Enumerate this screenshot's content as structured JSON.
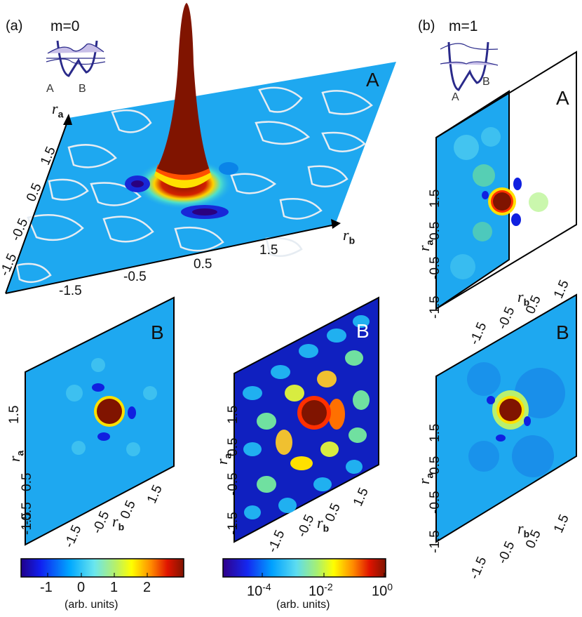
{
  "panel_labels": {
    "a": "(a)",
    "b": "(b)"
  },
  "insets": {
    "a": {
      "m_label": "m=0",
      "well_a": "A",
      "well_b": "B"
    },
    "b": {
      "m_label": "m=1",
      "well_a": "A",
      "well_b": "B"
    }
  },
  "subplot_letters": {
    "main": "A",
    "b_A": "A",
    "b_B": "B",
    "lin_B": "B",
    "log_B": "B"
  },
  "axis": {
    "ra": "r",
    "ra_sub": "a",
    "rb": "r",
    "rb_sub": "b"
  },
  "main_ticks": {
    "ra": [
      "1.5",
      "0.5",
      "-0.5",
      "-1.5"
    ],
    "rb": [
      "-1.5",
      "-0.5",
      "0.5",
      "1.5"
    ]
  },
  "small_ticks": {
    "ra": [
      "1.5",
      "0.5",
      "-0.5",
      "-1.5"
    ],
    "rb": [
      "-1.5",
      "-0.5",
      "0.5",
      "1.5"
    ]
  },
  "colorbars": {
    "linear": {
      "ticks": [
        "-1",
        "0",
        "1",
        "2"
      ],
      "unit": "(arb. units)",
      "min": -2,
      "max": 3
    },
    "log": {
      "ticks": [
        {
          "base": "10",
          "exp": "-4"
        },
        {
          "base": "10",
          "exp": "-2"
        },
        {
          "base": "10",
          "exp": "0"
        }
      ],
      "unit": "(arb. units)"
    }
  },
  "colors": {
    "background_field": "#1ea8f0",
    "peak": "#801400",
    "contour": "#e6ecf2"
  },
  "chart_data": [
    {
      "type": "heatmap",
      "panel": "(a) A",
      "view": "3d-surface",
      "m": 0,
      "xlabel": "r_b",
      "ylabel": "r_a",
      "x_ticks": [
        -1.5,
        -0.5,
        0.5,
        1.5
      ],
      "y_ticks": [
        -1.5,
        -0.5,
        0.5,
        1.5
      ],
      "colorbar": "linear"
    },
    {
      "type": "heatmap",
      "panel": "(a) B linear",
      "m": 0,
      "xlabel": "r_b",
      "ylabel": "r_a",
      "x_ticks": [
        -1.5,
        -0.5,
        0.5,
        1.5
      ],
      "y_ticks": [
        -1.5,
        -0.5,
        0.5,
        1.5
      ],
      "colorbar": "linear"
    },
    {
      "type": "heatmap",
      "panel": "(a) B log",
      "m": 0,
      "xlabel": "r_b",
      "ylabel": "r_a",
      "x_ticks": [
        -1.5,
        -0.5,
        0.5,
        1.5
      ],
      "y_ticks": [
        -1.5,
        -0.5,
        0.5,
        1.5
      ],
      "colorbar": "log"
    },
    {
      "type": "heatmap",
      "panel": "(b) A",
      "m": 1,
      "xlabel": "r_b",
      "ylabel": "r_a",
      "x_ticks": [
        -1.5,
        -0.5,
        0.5,
        1.5
      ],
      "y_ticks": [
        -1.5,
        -0.5,
        0.5,
        1.5
      ],
      "colorbar": "linear"
    },
    {
      "type": "heatmap",
      "panel": "(b) B",
      "m": 1,
      "xlabel": "r_b",
      "ylabel": "r_a",
      "x_ticks": [
        -1.5,
        -0.5,
        0.5,
        1.5
      ],
      "y_ticks": [
        -1.5,
        -0.5,
        0.5,
        1.5
      ],
      "colorbar": "linear"
    }
  ]
}
